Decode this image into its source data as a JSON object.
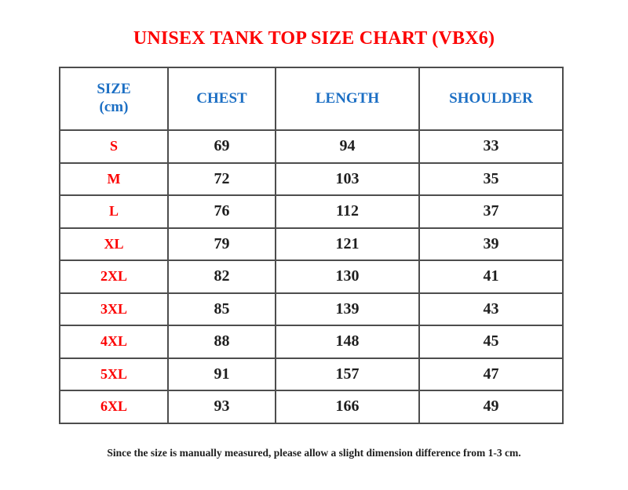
{
  "title": "UNISEX TANK TOP SIZE CHART (VBX6)",
  "footer_note": "Since the size is manually measured, please allow a slight dimension difference from 1-3 cm.",
  "colors": {
    "title_red": "#fc0000",
    "header_blue": "#1c6fc4",
    "size_label_red": "#fc0000",
    "value_black": "#1f1f1f",
    "border_gray": "#4d4d4d",
    "background": "#ffffff"
  },
  "chart_data": {
    "type": "table",
    "title": "UNISEX TANK TOP SIZE CHART (VBX6)",
    "columns": [
      "SIZE\n(cm)",
      "CHEST",
      "LENGTH",
      "SHOULDER"
    ],
    "rows": [
      {
        "size": "S",
        "chest": "69",
        "length": "94",
        "shoulder": "33"
      },
      {
        "size": "M",
        "chest": "72",
        "length": "103",
        "shoulder": "35"
      },
      {
        "size": "L",
        "chest": "76",
        "length": "112",
        "shoulder": "37"
      },
      {
        "size": "XL",
        "chest": "79",
        "length": "121",
        "shoulder": "39"
      },
      {
        "size": "2XL",
        "chest": "82",
        "length": "130",
        "shoulder": "41"
      },
      {
        "size": "3XL",
        "chest": "85",
        "length": "139",
        "shoulder": "43"
      },
      {
        "size": "4XL",
        "chest": "88",
        "length": "148",
        "shoulder": "45"
      },
      {
        "size": "5XL",
        "chest": "91",
        "length": "157",
        "shoulder": "47"
      },
      {
        "size": "6XL",
        "chest": "93",
        "length": "166",
        "shoulder": "49"
      }
    ],
    "note": "Since the size is manually measured, please allow a slight dimension difference from 1-3 cm.",
    "units": "cm"
  }
}
